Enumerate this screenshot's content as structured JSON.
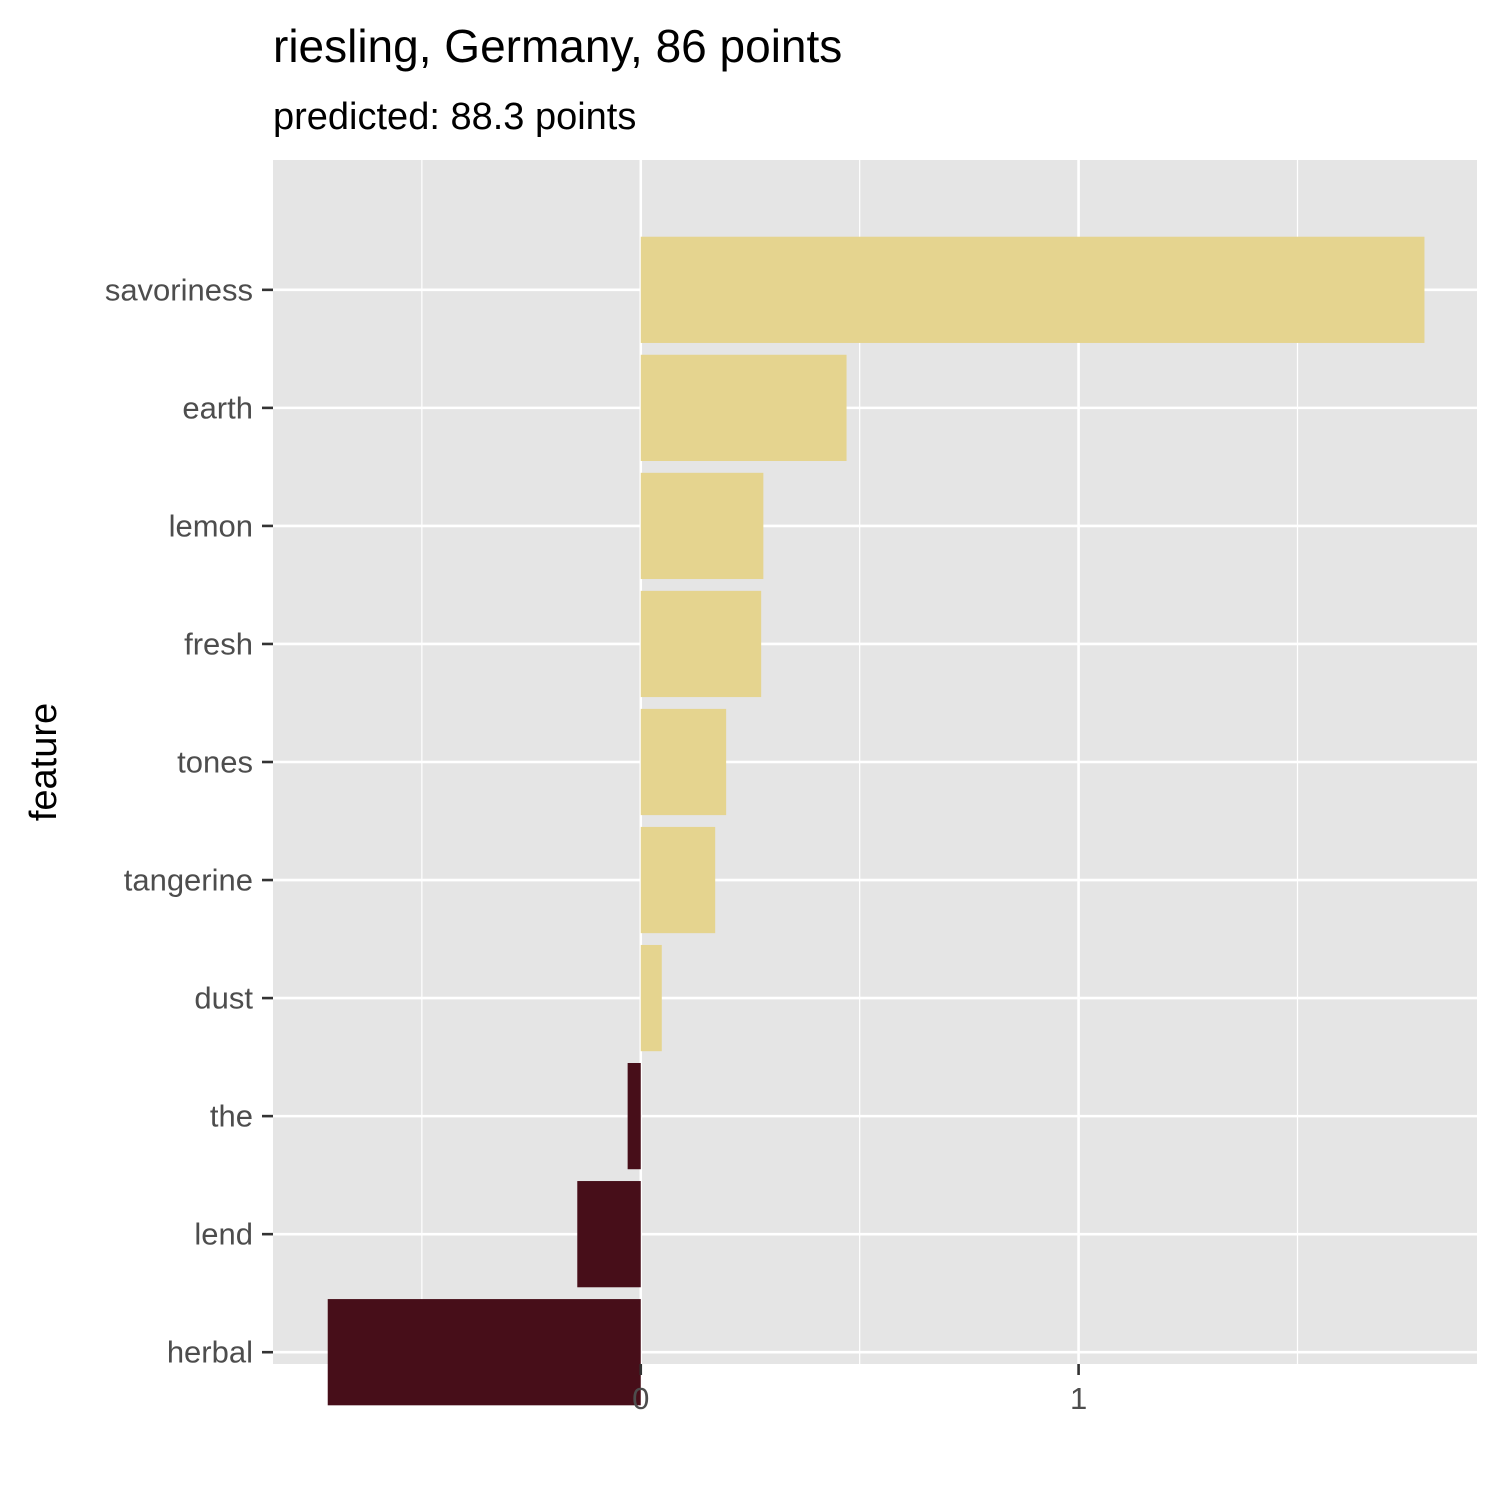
{
  "chart_data": {
    "type": "bar",
    "orientation": "horizontal",
    "title": "riesling, Germany, 86 points",
    "subtitle": "predicted: 88.3 points",
    "xlabel": "",
    "ylabel": "feature",
    "categories": [
      "savoriness",
      "earth",
      "lemon",
      "fresh",
      "tones",
      "tangerine",
      "dust",
      "the",
      "lend",
      "herbal"
    ],
    "values": [
      1.79,
      0.47,
      0.28,
      0.275,
      0.195,
      0.17,
      0.048,
      -0.03,
      -0.145,
      -0.715
    ],
    "xlim": [
      -0.84,
      1.91
    ],
    "xticks": [
      0,
      1
    ],
    "xtick_labels": [
      "0",
      "1"
    ],
    "grid": true,
    "colors": {
      "positive": "#E5D48F",
      "negative": "#470E19",
      "panel": "#E5E5E5",
      "grid": "#FFFFFF"
    }
  }
}
